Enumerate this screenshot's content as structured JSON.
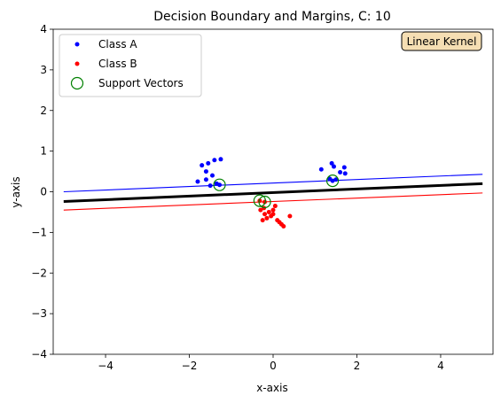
{
  "chart_data": {
    "type": "scatter",
    "title": "Decision Boundary and Margins, C: 10",
    "xlabel": "x-axis",
    "ylabel": "y-axis",
    "xlim": [
      -5.25,
      5.25
    ],
    "ylim": [
      -4,
      4
    ],
    "xticks": [
      -4,
      -2,
      0,
      2,
      4
    ],
    "yticks": [
      -4,
      -3,
      -2,
      -1,
      0,
      1,
      2,
      3,
      4
    ],
    "xtick_labels": [
      "−4",
      "−2",
      "0",
      "2",
      "4"
    ],
    "ytick_labels": [
      "−4",
      "−3",
      "−2",
      "−1",
      "0",
      "1",
      "2",
      "3",
      "4"
    ],
    "grid": false,
    "legend": {
      "placement": "top-left",
      "entries": [
        "Class A",
        "Class B",
        "Support Vectors"
      ]
    },
    "annotation": {
      "text": "Linear Kernel",
      "placement": "top-right",
      "facecolor": "#f5deb3"
    },
    "colors": {
      "class_a": "#0000ff",
      "class_b": "#ff0000",
      "support_vectors": "#008000",
      "boundary": "#000000",
      "upper_margin": "#0000ff",
      "lower_margin": "#ff0000"
    },
    "series": [
      {
        "name": "Class A",
        "points": [
          [
            -1.7,
            0.65
          ],
          [
            -1.55,
            0.7
          ],
          [
            -1.4,
            0.78
          ],
          [
            -1.25,
            0.8
          ],
          [
            -1.6,
            0.5
          ],
          [
            -1.45,
            0.4
          ],
          [
            -1.8,
            0.25
          ],
          [
            -1.6,
            0.3
          ],
          [
            -1.35,
            0.2
          ],
          [
            -1.5,
            0.15
          ],
          [
            1.4,
            0.7
          ],
          [
            1.45,
            0.62
          ],
          [
            1.6,
            0.48
          ],
          [
            1.7,
            0.6
          ],
          [
            1.72,
            0.45
          ],
          [
            1.15,
            0.55
          ],
          [
            1.5,
            0.3
          ],
          [
            1.35,
            0.32
          ],
          [
            -1.28,
            0.17
          ],
          [
            1.42,
            0.27
          ]
        ]
      },
      {
        "name": "Class B",
        "points": [
          [
            -0.3,
            -0.45
          ],
          [
            -0.25,
            -0.7
          ],
          [
            -0.2,
            -0.55
          ],
          [
            -0.15,
            -0.65
          ],
          [
            -0.05,
            -0.6
          ],
          [
            0.0,
            -0.45
          ],
          [
            0.05,
            -0.35
          ],
          [
            0.1,
            -0.7
          ],
          [
            0.15,
            -0.75
          ],
          [
            0.2,
            -0.8
          ],
          [
            0.25,
            -0.85
          ],
          [
            0.4,
            -0.6
          ],
          [
            -0.1,
            -0.5
          ],
          [
            0.0,
            -0.55
          ],
          [
            -0.22,
            -0.4
          ],
          [
            -0.32,
            -0.22
          ],
          [
            -0.2,
            -0.25
          ]
        ]
      },
      {
        "name": "Support Vectors",
        "points": [
          [
            -1.28,
            0.17
          ],
          [
            1.42,
            0.27
          ],
          [
            -0.32,
            -0.22
          ],
          [
            -0.2,
            -0.25
          ]
        ]
      }
    ],
    "lines": {
      "decision_boundary": {
        "x": [
          -5,
          5
        ],
        "y": [
          -0.24,
          0.2
        ]
      },
      "upper_margin": {
        "x": [
          -5,
          5
        ],
        "y": [
          0.0,
          0.43
        ]
      },
      "lower_margin": {
        "x": [
          -5,
          5
        ],
        "y": [
          -0.45,
          -0.03
        ]
      }
    }
  }
}
